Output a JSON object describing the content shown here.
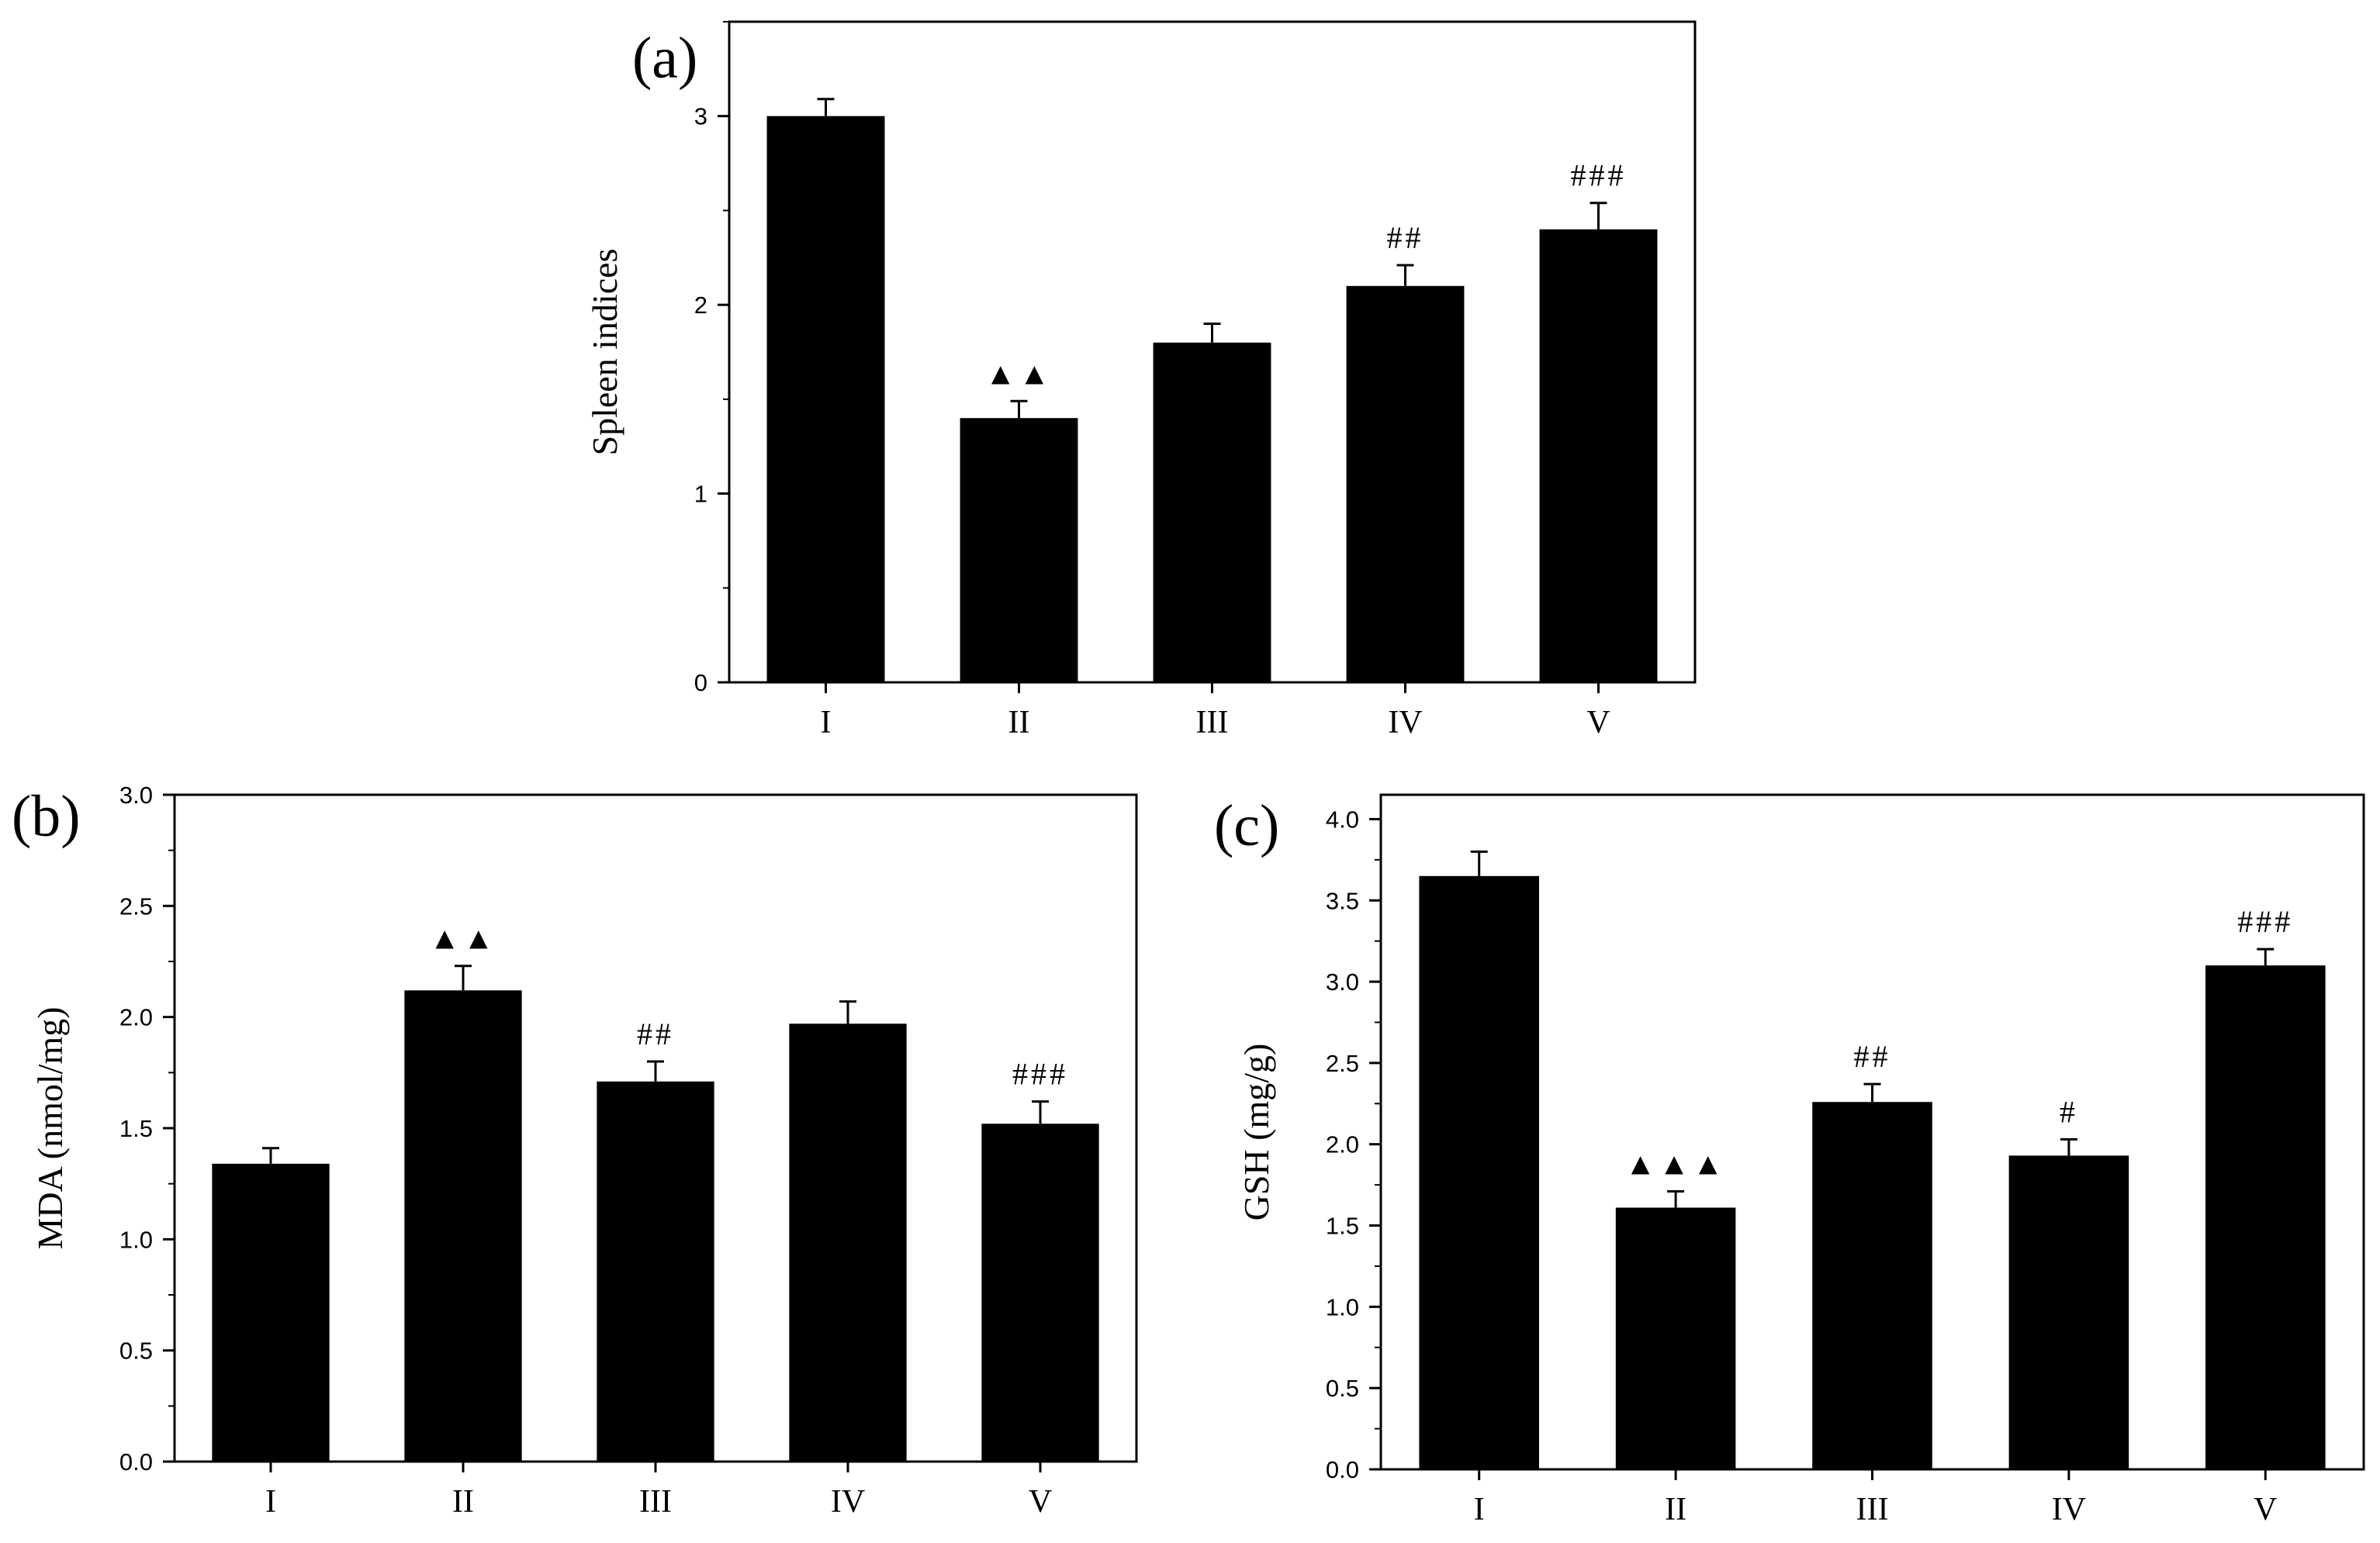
{
  "colors": {
    "bar": "#000000",
    "axis": "#000000",
    "background": "#ffffff"
  },
  "chart_data": [
    {
      "type": "bar",
      "panel_label": "(a)",
      "title": "",
      "xlabel": "",
      "ylabel": "Spleen indices",
      "categories": [
        "I",
        "II",
        "III",
        "IV",
        "V"
      ],
      "values": [
        3.0,
        1.4,
        1.8,
        2.1,
        2.4
      ],
      "errors": [
        0.09,
        0.09,
        0.1,
        0.11,
        0.14
      ],
      "annotations": [
        "",
        "▲▲",
        "",
        "##",
        "###"
      ],
      "ylim": [
        0,
        3.5
      ],
      "yticks": [
        0,
        1,
        2,
        3
      ],
      "ytick_labels": [
        "0",
        "1",
        "2",
        "3"
      ],
      "minor_step": 0.5,
      "grid": false
    },
    {
      "type": "bar",
      "panel_label": "(b)",
      "title": "",
      "xlabel": "",
      "ylabel": "MDA (nmol/mg)",
      "categories": [
        "I",
        "II",
        "III",
        "IV",
        "V"
      ],
      "values": [
        1.34,
        2.12,
        1.71,
        1.97,
        1.52
      ],
      "errors": [
        0.07,
        0.11,
        0.09,
        0.1,
        0.1
      ],
      "annotations": [
        "",
        "▲▲",
        "##",
        "",
        "###"
      ],
      "ylim": [
        0,
        3.0
      ],
      "yticks": [
        0,
        0.5,
        1.0,
        1.5,
        2.0,
        2.5,
        3.0
      ],
      "ytick_labels": [
        "0.0",
        "0.5",
        "1.0",
        "1.5",
        "2.0",
        "2.5",
        "3.0"
      ],
      "minor_step": 0.25,
      "grid": false
    },
    {
      "type": "bar",
      "panel_label": "(c)",
      "title": "",
      "xlabel": "",
      "ylabel": "GSH (mg/g)",
      "categories": [
        "I",
        "II",
        "III",
        "IV",
        "V"
      ],
      "values": [
        3.65,
        1.61,
        2.26,
        1.93,
        3.1
      ],
      "errors": [
        0.15,
        0.1,
        0.11,
        0.1,
        0.1
      ],
      "annotations": [
        "",
        "▲▲▲",
        "##",
        "#",
        "###"
      ],
      "ylim": [
        0,
        4.15
      ],
      "yticks": [
        0,
        0.5,
        1.0,
        1.5,
        2.0,
        2.5,
        3.0,
        3.5,
        4.0
      ],
      "ytick_labels": [
        "0.0",
        "0.5",
        "1.0",
        "1.5",
        "2.0",
        "2.5",
        "3.0",
        "3.5",
        "4.0"
      ],
      "minor_step": 0.25,
      "grid": false
    }
  ]
}
